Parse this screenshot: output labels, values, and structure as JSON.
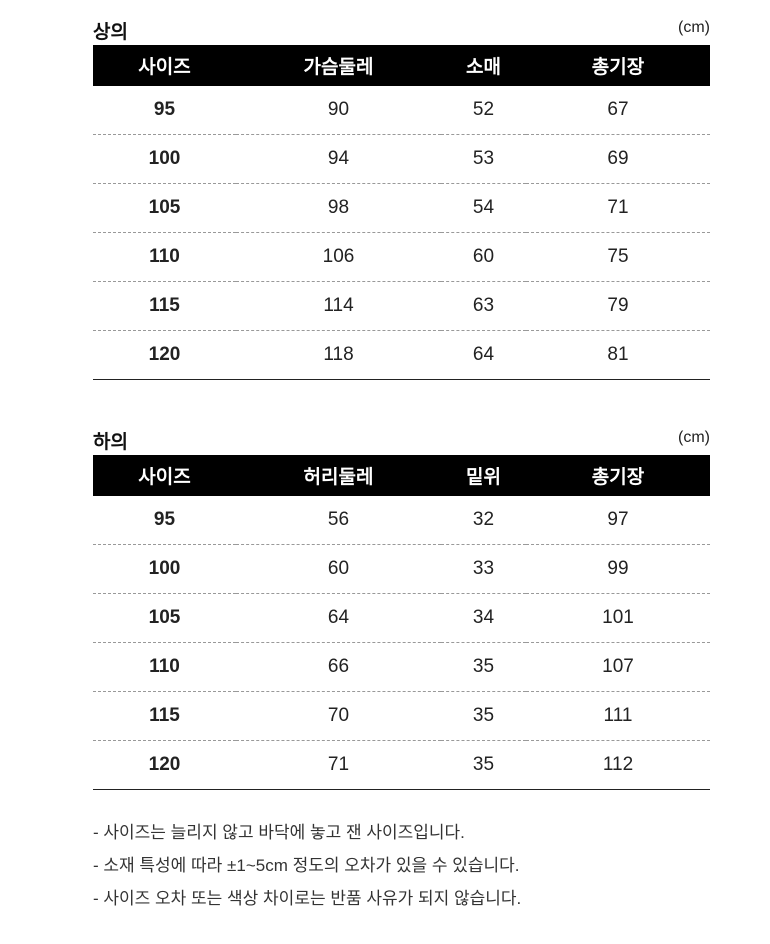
{
  "tables": [
    {
      "title": "상의",
      "unit": "(cm)",
      "headers": [
        "사이즈",
        "가슴둘레",
        "소매",
        "총기장"
      ],
      "rows": [
        [
          "95",
          "90",
          "52",
          "67"
        ],
        [
          "100",
          "94",
          "53",
          "69"
        ],
        [
          "105",
          "98",
          "54",
          "71"
        ],
        [
          "110",
          "106",
          "60",
          "75"
        ],
        [
          "115",
          "114",
          "63",
          "79"
        ],
        [
          "120",
          "118",
          "64",
          "81"
        ]
      ]
    },
    {
      "title": "하의",
      "unit": "(cm)",
      "headers": [
        "사이즈",
        "허리둘레",
        "밑위",
        "총기장"
      ],
      "rows": [
        [
          "95",
          "56",
          "32",
          "97"
        ],
        [
          "100",
          "60",
          "33",
          "99"
        ],
        [
          "105",
          "64",
          "34",
          "101"
        ],
        [
          "110",
          "66",
          "35",
          "107"
        ],
        [
          "115",
          "70",
          "35",
          "111"
        ],
        [
          "120",
          "71",
          "35",
          "112"
        ]
      ]
    }
  ],
  "notes": [
    "- 사이즈는 늘리지 않고 바닥에 놓고 잰 사이즈입니다.",
    "- 소재 특성에 따라 ±1~5cm 정도의 오차가 있을 수 있습니다.",
    "- 사이즈 오차 또는 색상 차이로는 반품 사유가 되지 않습니다."
  ]
}
